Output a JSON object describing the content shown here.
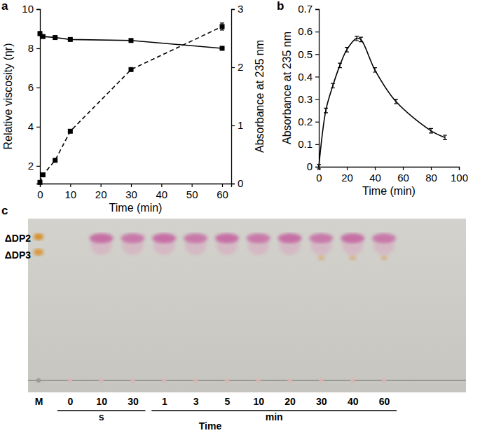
{
  "chart_data": [
    {
      "type": "line",
      "title": "a",
      "xlabel": "Time (min)",
      "ylabel": "Relative viscosity (ηr)",
      "y2label": "Absorbance at 235 nm",
      "x": [
        0,
        1,
        5,
        10,
        30,
        60
      ],
      "series": [
        {
          "values": [
            8.75,
            8.6,
            8.55,
            8.45,
            8.4,
            8.0
          ],
          "errors": [
            0.1,
            0.03,
            0.03,
            0.03,
            0.03,
            0.03
          ],
          "color": "#000000",
          "line_style": "solid",
          "marker": "square"
        },
        {
          "values": [
            0.02,
            0.15,
            0.4,
            0.9,
            1.96,
            2.7
          ],
          "errors": [
            0.01,
            0.01,
            0.01,
            0.02,
            0.02,
            0.06
          ],
          "color": "#000000",
          "line_style": "dashed",
          "marker": "square",
          "axis": "y2"
        }
      ],
      "xlim": [
        0,
        63
      ],
      "xticks": [
        0,
        10,
        20,
        30,
        40,
        50,
        60
      ],
      "ylim": [
        1.1,
        10
      ],
      "yticks": [
        2,
        4,
        6,
        8,
        10
      ],
      "y2lim": [
        0,
        3
      ],
      "y2ticks": [
        0,
        1,
        2,
        3
      ]
    },
    {
      "type": "line",
      "title": "b",
      "xlabel": "Time (min)",
      "ylabel": "Absorbance at 235 nm",
      "x": [
        0,
        5,
        10,
        15,
        20,
        27,
        30,
        40,
        55,
        80,
        90
      ],
      "series": [
        {
          "values": [
            0,
            0.25,
            0.36,
            0.45,
            0.52,
            0.57,
            0.565,
            0.43,
            0.29,
            0.16,
            0.13
          ],
          "errors": [
            0.01,
            0.01,
            0.01,
            0.01,
            0.01,
            0.01,
            0.01,
            0.01,
            0.01,
            0.01,
            0.01
          ],
          "color": "#000000",
          "line_style": "solid",
          "marker": "none"
        }
      ],
      "xlim": [
        0,
        100
      ],
      "xticks": [
        0,
        20,
        40,
        60,
        80,
        100
      ],
      "ylim": [
        0,
        0.7
      ],
      "yticks": [
        0,
        0.1,
        0.2,
        0.3,
        0.4,
        0.5,
        0.6,
        0.7
      ]
    },
    {
      "type": "tlc",
      "title": "c",
      "xlabel": "Time",
      "categories": [
        "M",
        "0",
        "10",
        "30",
        "1",
        "3",
        "5",
        "10",
        "20",
        "30",
        "40",
        "60"
      ],
      "lane_units": [
        null,
        "s",
        "s",
        "s",
        "min",
        "min",
        "min",
        "min",
        "min",
        "min",
        "min",
        "min"
      ],
      "annotations": [
        "ΔDP2",
        "ΔDP3"
      ]
    }
  ]
}
